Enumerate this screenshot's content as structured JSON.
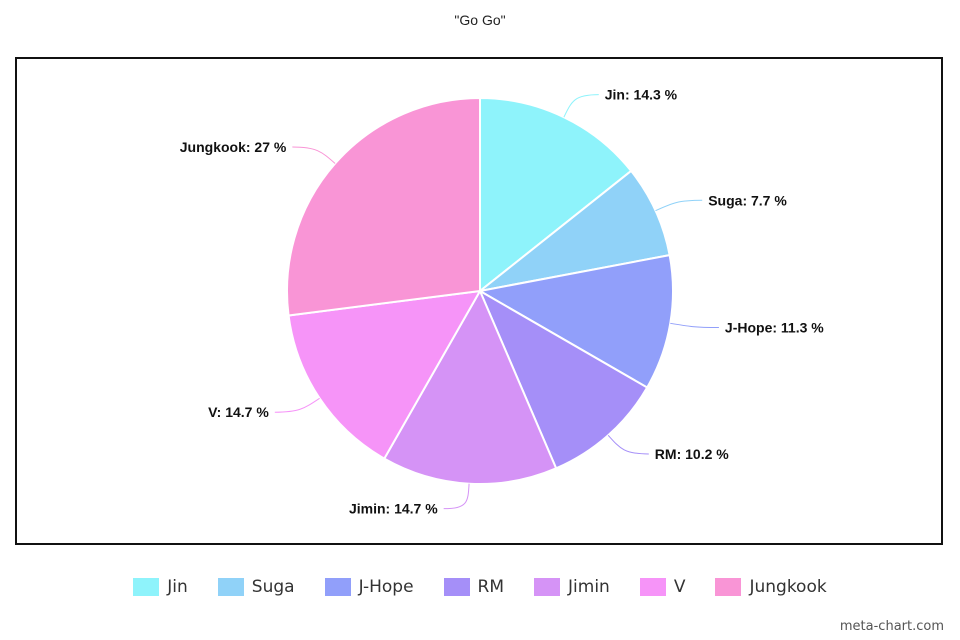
{
  "chart_data": {
    "type": "pie",
    "title": "\"Go Go\"",
    "categories": [
      "Jin",
      "Suga",
      "J-Hope",
      "RM",
      "Jimin",
      "V",
      "Jungkook"
    ],
    "values": [
      14.3,
      7.7,
      11.3,
      10.2,
      14.7,
      14.7,
      27
    ],
    "colors": [
      "#8ef3fb",
      "#90d2f8",
      "#919ffa",
      "#a58ff8",
      "#d593f6",
      "#f694f8",
      "#f995d6"
    ],
    "data_labels": [
      "Jin: 14.3 %",
      "Suga: 7.7 %",
      "J-Hope: 11.3 %",
      "RM: 10.2 %",
      "Jimin: 14.7 %",
      "V: 14.7 %",
      "Jungkook: 27 %"
    ],
    "legend_position": "bottom"
  },
  "watermark": "meta-chart.com"
}
